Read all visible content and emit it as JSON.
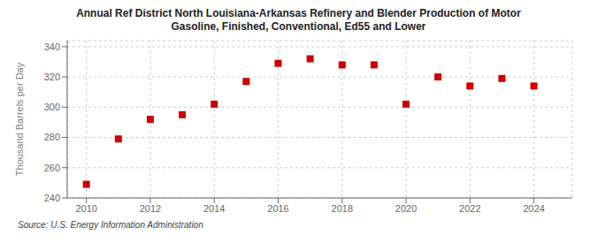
{
  "chart_data": {
    "type": "scatter",
    "title": "Annual Ref District North Louisiana-Arkansas Refinery and Blender Production of Motor\nGasoline, Finished, Conventional, Ed55 and Lower",
    "y_label": "Thousand Barrels per Day",
    "source": "Source: U.S. Energy Information Administration",
    "x": [
      2010,
      2011,
      2012,
      2013,
      2014,
      2015,
      2016,
      2017,
      2018,
      2019,
      2020,
      2021,
      2022,
      2023,
      2024
    ],
    "values": [
      249,
      279,
      292,
      295,
      302,
      317,
      329,
      332,
      328,
      328,
      302,
      320,
      314,
      319,
      314
    ],
    "color": "#cc0000",
    "marker": "square",
    "xlim": [
      2009.4,
      2025.2
    ],
    "xticks": [
      2010,
      2012,
      2014,
      2016,
      2018,
      2020,
      2022,
      2024
    ],
    "ylim": [
      240,
      344
    ],
    "yticks": [
      240,
      260,
      280,
      300,
      320,
      340
    ],
    "grid": true
  }
}
